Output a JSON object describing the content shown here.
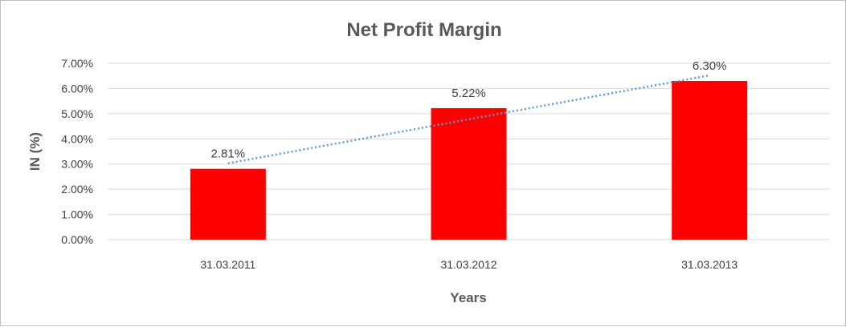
{
  "chart_data": {
    "type": "bar",
    "title": "Net Profit Margin",
    "xlabel": "Years",
    "ylabel": "IN (%)",
    "categories": [
      "31.03.2011",
      "31.03.2012",
      "31.03.2013"
    ],
    "values": [
      2.81,
      5.22,
      6.3
    ],
    "data_labels": [
      "2.81%",
      "5.22%",
      "6.30%"
    ],
    "ylim": [
      0,
      7
    ],
    "yticks": [
      0,
      1,
      2,
      3,
      4,
      5,
      6,
      7
    ],
    "ytick_labels": [
      "0.00%",
      "1.00%",
      "2.00%",
      "3.00%",
      "4.00%",
      "5.00%",
      "6.00%",
      "7.00%"
    ],
    "grid": true,
    "bar_color": "#ff0000",
    "trendline": {
      "type": "linear",
      "color": "#5b9bd5",
      "style": "dotted"
    }
  }
}
